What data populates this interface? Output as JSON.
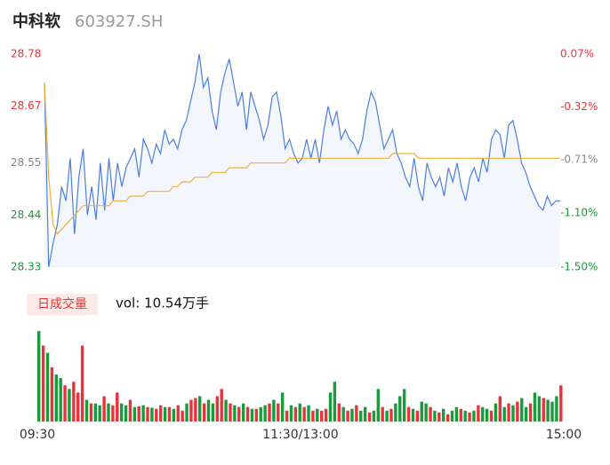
{
  "header": {
    "title": "中科软",
    "code": "603927.SH"
  },
  "chart_data": [
    {
      "type": "line",
      "xlim": [
        0,
        120
      ],
      "xticks": [
        {
          "value": 0,
          "label": "09:30"
        },
        {
          "value": 60,
          "label": "11:30/13:00"
        },
        {
          "value": 120,
          "label": "15:00"
        }
      ],
      "ylim": [
        28.33,
        28.78
      ],
      "yticks": [
        28.33,
        28.44,
        28.55,
        28.67,
        28.78
      ],
      "ytick_colors": [
        "#1a9a3a",
        "#1a9a3a",
        "#888888",
        "#e8333a",
        "#e8333a"
      ],
      "y2lim": [
        -1.5,
        0.07
      ],
      "y2ticks": [
        {
          "value": -1.5,
          "label": "-1.50%"
        },
        {
          "value": -1.1,
          "label": "-1.10%"
        },
        {
          "value": -0.71,
          "label": "-0.71%"
        },
        {
          "value": -0.32,
          "label": "-0.32%"
        },
        {
          "value": 0.07,
          "label": "0.07%"
        }
      ],
      "series": [
        {
          "name": "price",
          "color": "#4a7fe0",
          "values": [
            28.72,
            28.33,
            28.38,
            28.42,
            28.5,
            28.47,
            28.56,
            28.4,
            28.52,
            28.58,
            28.44,
            28.5,
            28.43,
            28.55,
            28.45,
            28.56,
            28.47,
            28.55,
            28.5,
            28.54,
            28.56,
            28.58,
            28.52,
            28.6,
            28.58,
            28.55,
            28.59,
            28.57,
            28.62,
            28.59,
            28.6,
            28.58,
            28.62,
            28.64,
            28.68,
            28.72,
            28.78,
            28.71,
            28.73,
            28.66,
            28.62,
            28.7,
            28.74,
            28.77,
            28.72,
            28.67,
            28.7,
            28.62,
            28.7,
            28.67,
            28.64,
            28.6,
            28.63,
            28.69,
            28.7,
            28.65,
            28.58,
            28.6,
            28.57,
            28.55,
            28.56,
            28.6,
            28.56,
            28.6,
            28.55,
            28.62,
            28.67,
            28.63,
            28.66,
            28.6,
            28.62,
            28.6,
            28.59,
            28.57,
            28.6,
            28.66,
            28.7,
            28.68,
            28.63,
            28.58,
            28.6,
            28.62,
            28.57,
            28.55,
            28.52,
            28.5,
            28.56,
            28.5,
            28.47,
            28.55,
            28.52,
            28.5,
            28.52,
            28.48,
            28.54,
            28.51,
            28.55,
            28.5,
            28.47,
            28.52,
            28.54,
            28.51,
            28.56,
            28.53,
            28.6,
            28.62,
            28.61,
            28.56,
            28.63,
            28.64,
            28.6,
            28.55,
            28.53,
            28.5,
            28.48,
            28.46,
            28.45,
            28.48,
            28.46,
            28.47,
            28.47
          ]
        },
        {
          "name": "average",
          "color": "#f0b030",
          "values": [
            28.72,
            28.52,
            28.42,
            28.4,
            28.41,
            28.42,
            28.43,
            28.44,
            28.45,
            28.46,
            28.46,
            28.46,
            28.46,
            28.46,
            28.46,
            28.46,
            28.47,
            28.47,
            28.47,
            28.47,
            28.48,
            28.48,
            28.48,
            28.48,
            28.49,
            28.49,
            28.49,
            28.49,
            28.49,
            28.49,
            28.5,
            28.5,
            28.51,
            28.51,
            28.51,
            28.52,
            28.52,
            28.52,
            28.52,
            28.53,
            28.53,
            28.53,
            28.53,
            28.54,
            28.54,
            28.54,
            28.54,
            28.54,
            28.55,
            28.55,
            28.55,
            28.55,
            28.55,
            28.55,
            28.55,
            28.55,
            28.55,
            28.56,
            28.56,
            28.56,
            28.56,
            28.56,
            28.56,
            28.56,
            28.56,
            28.56,
            28.56,
            28.56,
            28.56,
            28.56,
            28.56,
            28.56,
            28.56,
            28.56,
            28.56,
            28.56,
            28.56,
            28.56,
            28.56,
            28.56,
            28.56,
            28.57,
            28.57,
            28.57,
            28.57,
            28.57,
            28.57,
            28.56,
            28.56,
            28.56,
            28.56,
            28.56,
            28.56,
            28.56,
            28.56,
            28.56,
            28.56,
            28.56,
            28.56,
            28.56,
            28.56,
            28.56,
            28.56,
            28.56,
            28.56,
            28.56,
            28.56,
            28.56,
            28.56,
            28.56,
            28.56,
            28.56,
            28.56,
            28.56,
            28.56,
            28.56,
            28.56,
            28.56,
            28.56,
            28.56,
            28.56
          ]
        }
      ]
    },
    {
      "type": "bar",
      "label": "日成交量",
      "volume_text": "vol: 10.54万手",
      "ylim": [
        0,
        2700
      ],
      "values": [
        2500,
        2100,
        1900,
        1500,
        1300,
        1200,
        1000,
        900,
        1100,
        800,
        2100,
        600,
        500,
        500,
        450,
        700,
        500,
        450,
        800,
        500,
        450,
        600,
        400,
        420,
        450,
        400,
        380,
        350,
        450,
        400,
        400,
        350,
        450,
        300,
        500,
        600,
        650,
        700,
        500,
        600,
        500,
        700,
        900,
        600,
        500,
        450,
        400,
        500,
        400,
        350,
        350,
        400,
        450,
        500,
        600,
        500,
        800,
        300,
        450,
        400,
        500,
        400,
        450,
        300,
        350,
        300,
        350,
        800,
        1100,
        500,
        400,
        300,
        350,
        450,
        300,
        400,
        250,
        300,
        900,
        400,
        300,
        350,
        500,
        700,
        900,
        400,
        350,
        300,
        550,
        500,
        400,
        300,
        250,
        350,
        200,
        300,
        400,
        350,
        300,
        250,
        300,
        450,
        400,
        350,
        300,
        500,
        700,
        400,
        500,
        450,
        550,
        650,
        400,
        500,
        800,
        700,
        650,
        600,
        550,
        700,
        1000
      ],
      "colors": [
        "#1a9a3a",
        "#e8333a",
        "#1a9a3a",
        "#e8333a",
        "#1a9a3a",
        "#1a9a3a",
        "#e8333a",
        "#1a9a3a",
        "#e8333a",
        "#e8333a",
        "#e8333a",
        "#1a9a3a",
        "#e8333a",
        "#1a9a3a",
        "#1a9a3a",
        "#e8333a",
        "#1a9a3a",
        "#e8333a",
        "#e8333a",
        "#1a9a3a",
        "#1a9a3a",
        "#e8333a",
        "#1a9a3a",
        "#e8333a",
        "#1a9a3a",
        "#e8333a",
        "#1a9a3a",
        "#e8333a",
        "#e8333a",
        "#1a9a3a",
        "#e8333a",
        "#1a9a3a",
        "#e8333a",
        "#e8333a",
        "#1a9a3a",
        "#e8333a",
        "#e8333a",
        "#1a9a3a",
        "#e8333a",
        "#1a9a3a",
        "#1a9a3a",
        "#e8333a",
        "#e8333a",
        "#1a9a3a",
        "#e8333a",
        "#1a9a3a",
        "#e8333a",
        "#1a9a3a",
        "#e8333a",
        "#1a9a3a",
        "#e8333a",
        "#1a9a3a",
        "#1a9a3a",
        "#e8333a",
        "#1a9a3a",
        "#e8333a",
        "#1a9a3a",
        "#e8333a",
        "#1a9a3a",
        "#e8333a",
        "#1a9a3a",
        "#e8333a",
        "#1a9a3a",
        "#e8333a",
        "#1a9a3a",
        "#e8333a",
        "#e8333a",
        "#1a9a3a",
        "#1a9a3a",
        "#e8333a",
        "#1a9a3a",
        "#e8333a",
        "#1a9a3a",
        "#e8333a",
        "#1a9a3a",
        "#1a9a3a",
        "#e8333a",
        "#1a9a3a",
        "#1a9a3a",
        "#e8333a",
        "#1a9a3a",
        "#e8333a",
        "#1a9a3a",
        "#1a9a3a",
        "#1a9a3a",
        "#e8333a",
        "#1a9a3a",
        "#e8333a",
        "#1a9a3a",
        "#1a9a3a",
        "#e8333a",
        "#1a9a3a",
        "#e8333a",
        "#1a9a3a",
        "#e8333a",
        "#1a9a3a",
        "#1a9a3a",
        "#e8333a",
        "#1a9a3a",
        "#e8333a",
        "#1a9a3a",
        "#e8333a",
        "#1a9a3a",
        "#1a9a3a",
        "#e8333a",
        "#1a9a3a",
        "#e8333a",
        "#1a9a3a",
        "#e8333a",
        "#1a9a3a",
        "#e8333a",
        "#1a9a3a",
        "#1a9a3a",
        "#e8333a",
        "#1a9a3a",
        "#1a9a3a",
        "#e8333a",
        "#1a9a3a",
        "#1a9a3a",
        "#1a9a3a",
        "#e8333a"
      ]
    }
  ]
}
